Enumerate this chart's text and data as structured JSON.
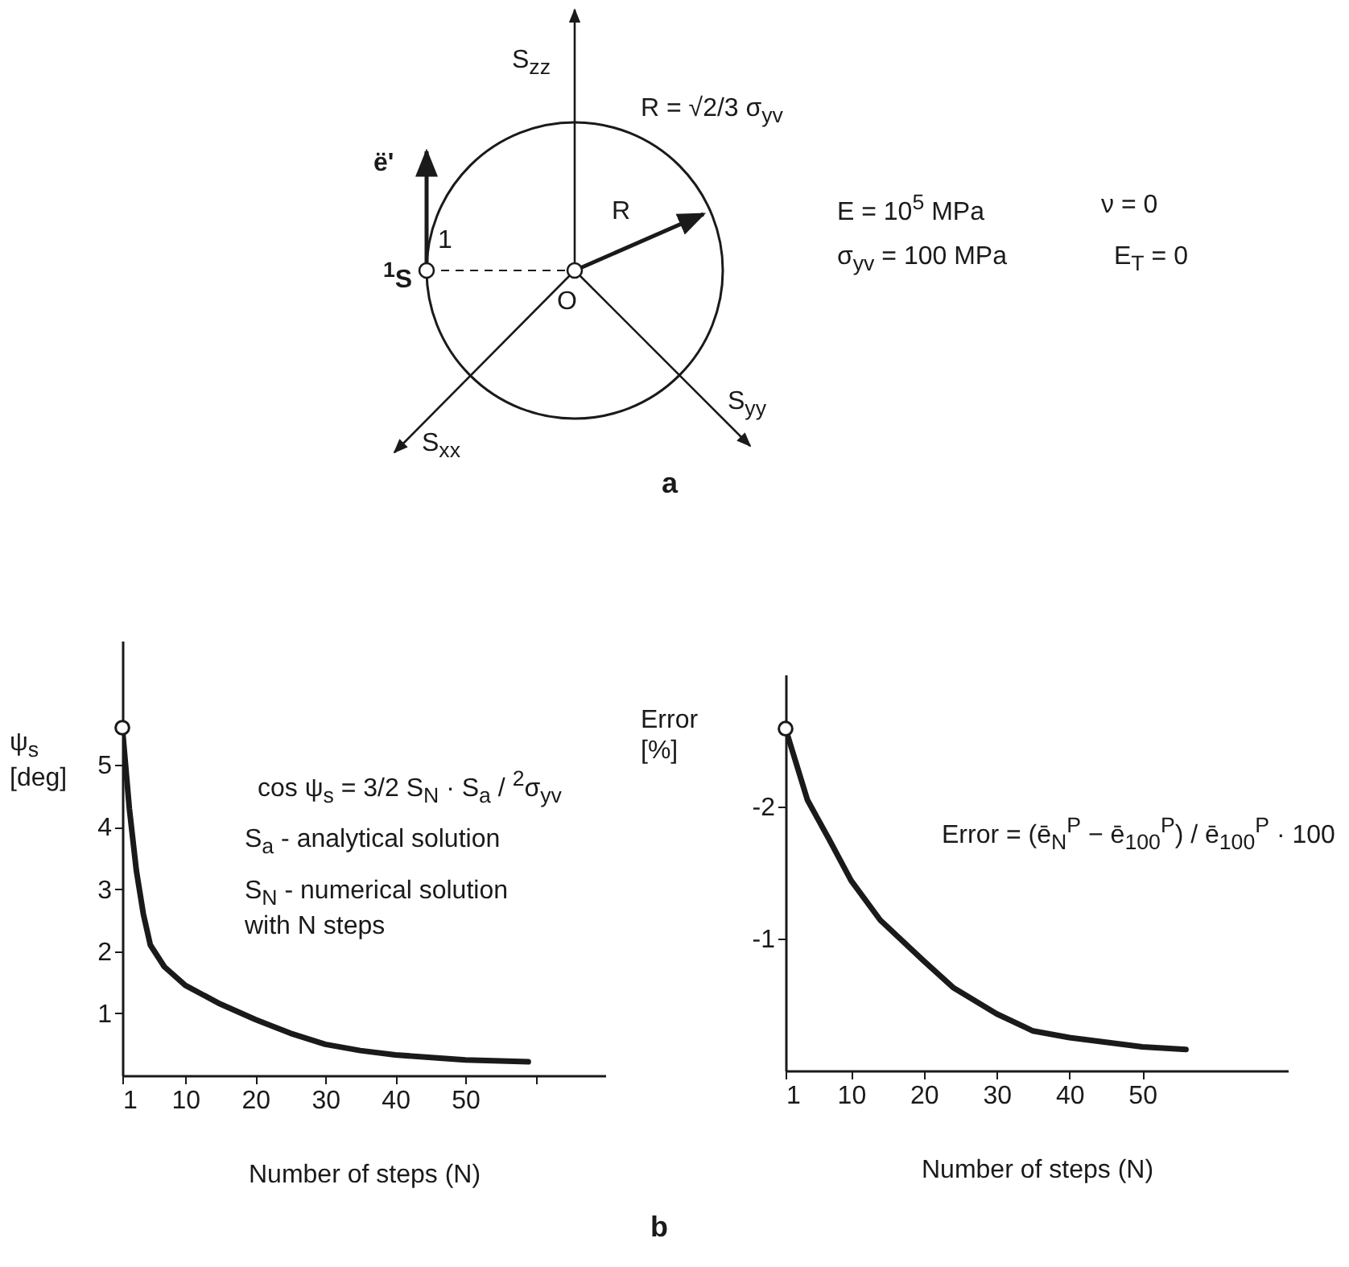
{
  "chart_data": [
    {
      "type": "other",
      "annotations": [
        "S$_{zz}$",
        "R = √2/3  σ$_{yv}$",
        "ë'",
        "1",
        "$^{1}$S",
        "R",
        "O",
        "S$_{xx}$",
        "S$_{yy}$",
        "E = 10$^{5}$ MPa",
        "ν = 0",
        "σ$_{yv}$ = 100 MPa",
        "E$_{T}$ = 0",
        "a"
      ]
    },
    {
      "type": "line",
      "xlabel": "Number of steps (N)",
      "ylabel": "ψ$_{s}$ [deg]",
      "annotations": [
        "cos ψ$_{s}$ =  3/2  S$_{N}$ · S$_{a}$ / $^{2}$σ$_{yv}$",
        "S$_{a}$ - analytical solution",
        "S$_{N}$ - numerical solution with N steps",
        "b"
      ],
      "xlim": [
        1,
        70
      ],
      "ylim": [
        0,
        7
      ],
      "xticks": [
        1,
        10,
        20,
        30,
        40,
        50,
        {
          "value": 60,
          "label": null
        }
      ],
      "yticks": [
        1,
        2,
        3,
        4,
        5
      ],
      "x": [
        1,
        2,
        3,
        4,
        5,
        7,
        10,
        15,
        20,
        25,
        30,
        35,
        40,
        50,
        59
      ],
      "series": [
        {
          "type": "line",
          "color": "#1a1a1a",
          "values": [
            5.6,
            4.3,
            3.3,
            2.6,
            2.1,
            1.75,
            1.45,
            1.15,
            0.9,
            0.68,
            0.5,
            0.4,
            0.33,
            0.25,
            0.22
          ]
        },
        {
          "type": "scatter",
          "marker": "circle",
          "color": "#1a1a1a",
          "x": [
            1
          ],
          "values": [
            5.6
          ]
        }
      ]
    },
    {
      "type": "line",
      "xlabel": "Number of steps (N)",
      "ylabel": "Error [%]",
      "annotations": [
        "Error = (ē$_{N}$$^{P}$ − ē$_{100}$$^{P}$) / ē$_{100}$$^{P}$ · 100"
      ],
      "xlim": [
        1,
        70
      ],
      "ylim": [
        0,
        -3
      ],
      "xticks": [
        1,
        10,
        20,
        30,
        40,
        50
      ],
      "yticks": [
        -2,
        -1
      ],
      "x": [
        1,
        4,
        7,
        10,
        14,
        20,
        24,
        30,
        35,
        40,
        50,
        56
      ],
      "series": [
        {
          "type": "line",
          "color": "#1a1a1a",
          "values": [
            -2.59,
            -2.05,
            -1.75,
            -1.44,
            -1.14,
            -0.83,
            -0.63,
            -0.43,
            -0.3,
            -0.25,
            -0.18,
            -0.16
          ]
        },
        {
          "type": "scatter",
          "marker": "circle",
          "color": "#1a1a1a",
          "x": [
            1
          ],
          "values": [
            -2.59
          ]
        }
      ]
    }
  ]
}
